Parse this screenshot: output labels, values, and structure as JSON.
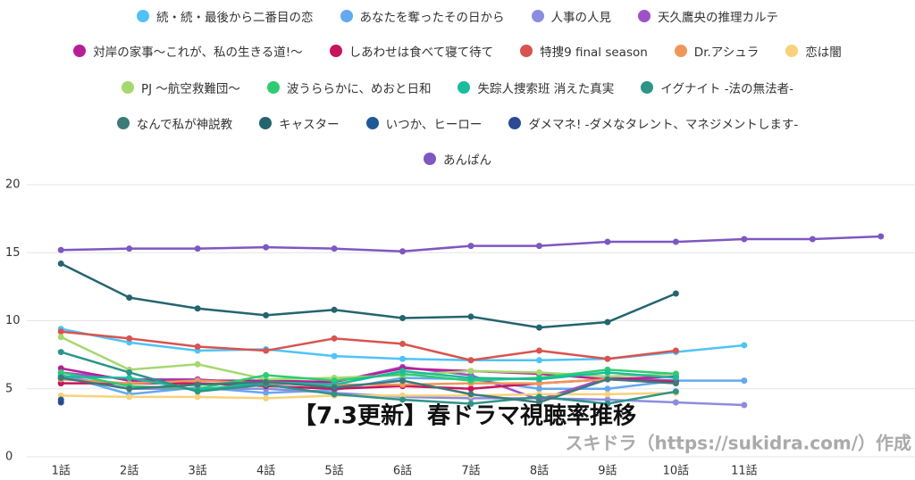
{
  "chart_data": {
    "type": "line",
    "categories": [
      "1話",
      "2話",
      "3話",
      "4話",
      "5話",
      "6話",
      "7話",
      "8話",
      "9話",
      "10話",
      "11話",
      null,
      null
    ],
    "ylim": [
      0,
      20
    ],
    "yticks": [
      0,
      5,
      10,
      15,
      20
    ],
    "grid": true,
    "annotations": [
      "【7.3更新】春ドラマ視聴率推移",
      "スキドラ（https://sukidra.com/）作成"
    ],
    "series": [
      {
        "name": "続・続・最後から二番目の恋",
        "color": "#4fc3f7",
        "values": [
          9.4,
          8.4,
          7.8,
          7.9,
          7.4,
          7.2,
          7.1,
          7.1,
          7.2,
          7.7,
          8.2,
          null,
          null
        ]
      },
      {
        "name": "あなたを奪ったその日から",
        "color": "#64a8f0",
        "values": [
          6.0,
          4.6,
          5.1,
          4.7,
          4.9,
          5.8,
          5.7,
          5.0,
          5.0,
          5.6,
          5.6,
          null,
          null
        ]
      },
      {
        "name": "人事の人見",
        "color": "#8c8ce0",
        "values": [
          6.0,
          5.0,
          5.0,
          5.0,
          4.7,
          4.4,
          4.3,
          4.3,
          4.2,
          4.0,
          3.8,
          null,
          null
        ]
      },
      {
        "name": "天久鷹央の推理カルテ",
        "color": "#a050c8",
        "values": [
          6.2,
          5.7,
          5.7,
          5.3,
          5.5,
          6.6,
          6.0,
          4.2,
          5.8,
          5.6,
          null,
          null,
          null
        ]
      },
      {
        "name": "対岸の家事～これが、私の生きる道!～",
        "color": "#b81e96",
        "values": [
          6.5,
          5.6,
          5.6,
          5.6,
          5.5,
          6.5,
          6.3,
          6.1,
          5.7,
          5.9,
          null,
          null,
          null
        ]
      },
      {
        "name": "しあわせは食べて寝て待て",
        "color": "#c8145a",
        "values": [
          5.4,
          5.4,
          5.4,
          5.2,
          5.0,
          5.2,
          5.0,
          5.4,
          5.7,
          5.5,
          null,
          null,
          null
        ]
      },
      {
        "name": "特捜9 final season",
        "color": "#d9534f",
        "values": [
          9.2,
          8.7,
          8.1,
          7.8,
          8.7,
          8.3,
          7.1,
          7.8,
          7.2,
          7.8,
          null,
          null,
          null
        ]
      },
      {
        "name": "Dr.アシュラ",
        "color": "#f0965a",
        "values": [
          5.7,
          5.4,
          5.6,
          5.4,
          5.3,
          5.3,
          5.4,
          5.4,
          5.7,
          null,
          null,
          null,
          null
        ]
      },
      {
        "name": "恋は闇",
        "color": "#f8d27a",
        "values": [
          4.5,
          4.4,
          4.4,
          4.3,
          4.5,
          4.5,
          4.5,
          4.6,
          4.6,
          4.7,
          null,
          null,
          null
        ]
      },
      {
        "name": "PJ ～航空救難団～",
        "color": "#a5d86f",
        "values": [
          8.8,
          6.4,
          6.8,
          5.7,
          5.8,
          6.0,
          6.3,
          6.2,
          5.9,
          6.1,
          null,
          null,
          null
        ]
      },
      {
        "name": "波うららかに、めおと日和",
        "color": "#2ecc71",
        "values": [
          6.2,
          5.2,
          5.0,
          6.0,
          5.6,
          6.1,
          5.6,
          5.8,
          6.4,
          6.1,
          null,
          null,
          null
        ]
      },
      {
        "name": "失踪人捜索班 消えた真実",
        "color": "#1abc9c",
        "values": [
          5.9,
          5.8,
          4.9,
          5.5,
          5.3,
          6.3,
          5.8,
          5.7,
          6.2,
          5.8,
          null,
          null,
          null
        ]
      },
      {
        "name": "イグナイト -法の無法者-",
        "color": "#2e9488",
        "values": [
          7.7,
          6.2,
          4.8,
          5.3,
          4.6,
          4.2,
          3.9,
          4.4,
          3.9,
          4.8,
          null,
          null,
          null
        ]
      },
      {
        "name": "なんで私が神説教",
        "color": "#3d7a7a",
        "values": [
          5.8,
          5.0,
          5.3,
          5.5,
          5.1,
          5.6,
          4.6,
          4.0,
          5.7,
          5.4,
          null,
          null,
          null
        ]
      },
      {
        "name": "キャスター",
        "color": "#24646f",
        "values": [
          14.2,
          11.7,
          10.9,
          10.4,
          10.8,
          10.2,
          10.3,
          9.5,
          9.9,
          12.0,
          null,
          null,
          null
        ]
      },
      {
        "name": "いつか、ヒーロー",
        "color": "#1f5a96",
        "values": [
          4.2,
          null,
          null,
          null,
          null,
          null,
          null,
          null,
          null,
          null,
          null,
          null,
          null
        ]
      },
      {
        "name": "ダメマネ! -ダメなタレント、マネジメントします-",
        "color": "#2c4a94",
        "values": [
          4.0,
          null,
          null,
          null,
          null,
          null,
          null,
          null,
          null,
          null,
          null,
          null,
          null
        ]
      },
      {
        "name": "あんぱん",
        "color": "#7e57c2",
        "values": [
          15.2,
          15.3,
          15.3,
          15.4,
          15.3,
          15.1,
          15.5,
          15.5,
          15.8,
          15.8,
          16.0,
          16.0,
          16.2
        ]
      }
    ]
  }
}
